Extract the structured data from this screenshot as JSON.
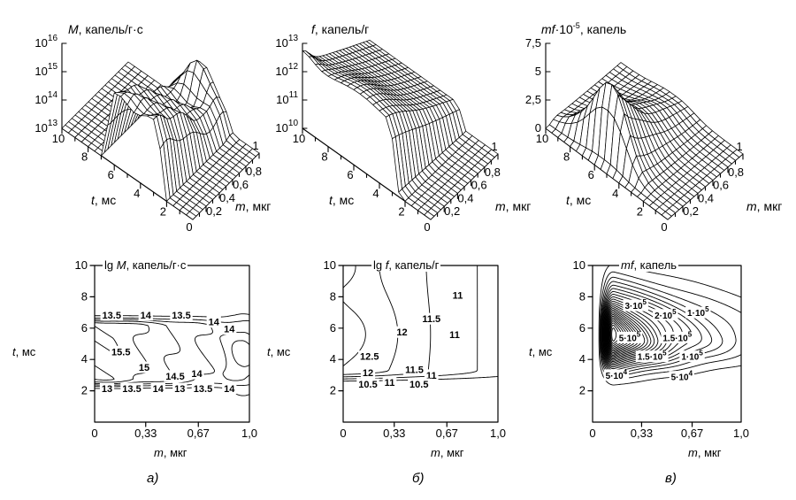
{
  "figure": {
    "colors": {
      "ink": "#000000",
      "paper": "#ffffff"
    },
    "captions": {
      "a": "а)",
      "b": "б)",
      "v": "в)"
    },
    "axis_labels": {
      "t": {
        "var": "t",
        "rest": ", мс"
      },
      "m": {
        "var": "m",
        "rest": ", мкг"
      }
    },
    "titles": {
      "surface_M": {
        "var": "M",
        "rest": ", капель/г·с"
      },
      "surface_f": {
        "var": "f",
        "rest": ", капель/г"
      },
      "surface_mf": {
        "var": "mf",
        "mid": "·10",
        "sup": "-5",
        "rest": ", капель"
      },
      "contour_M": {
        "prefix": "lg ",
        "var": "M",
        "rest": ", капель/г·с"
      },
      "contour_f": {
        "prefix": "lg ",
        "var": "f",
        "rest": ", капель/г"
      },
      "contour_mf": {
        "var": "mf",
        "rest": ", капель"
      }
    }
  },
  "chart_data": [
    {
      "id": "surface-M",
      "type": "surface",
      "panel": "top-left",
      "title": "M, капель/г·с",
      "t_axis": {
        "label": "t, мс",
        "range": [
          0,
          10
        ],
        "tick_values": [
          10,
          8,
          6,
          4,
          2
        ],
        "tick_labels": [
          "10",
          "8",
          "6",
          "4",
          "2"
        ]
      },
      "m_axis": {
        "label": "m, мкг",
        "range": [
          0,
          1
        ],
        "tick_values": [
          0,
          0.2,
          0.4,
          0.6,
          0.8,
          1
        ],
        "tick_labels": [
          "0",
          "0,2",
          "0,4",
          "0,6",
          "0,8",
          "1"
        ]
      },
      "z_axis": {
        "scale": "log10",
        "range_exp": [
          13,
          16
        ],
        "tick_values": [
          13,
          14,
          15,
          16
        ],
        "tick_exponents": [
          "13",
          "14",
          "15",
          "16"
        ],
        "tick_labels": [
          "10^13",
          "10^14",
          "10^15",
          "10^16"
        ]
      },
      "grid_n": 20,
      "surface_model": {
        "kind": "plateau_ridge",
        "base": 12.85,
        "rise": [
          2.05,
          2.75
        ],
        "fall": [
          6.15,
          6.9
        ],
        "amp0": 2.6,
        "ampSlope": 2.5,
        "ampKnee": 0.12,
        "ampMin": 0.55,
        "spike": {
          "t": 4.3,
          "divT": 3.0,
          "m": 0.96,
          "divM": 0.012,
          "amp": 1.45
        },
        "wiggle": {
          "amp": 0.13,
          "fm": 16,
          "ft": 2.5
        }
      }
    },
    {
      "id": "surface-f",
      "type": "surface",
      "panel": "top-middle",
      "title": "f, капель/г",
      "t_axis": {
        "label": "t, мс",
        "range": [
          0,
          10
        ],
        "tick_values": [
          10,
          8,
          6,
          4,
          2
        ],
        "tick_labels": [
          "10",
          "8",
          "6",
          "4",
          "2"
        ]
      },
      "m_axis": {
        "label": "m, мкг",
        "range": [
          0,
          1
        ],
        "tick_values": [
          0,
          0.2,
          0.4,
          0.6,
          0.8,
          1
        ],
        "tick_labels": [
          "0",
          "0,2",
          "0,4",
          "0,6",
          "0,8",
          "1"
        ]
      },
      "z_axis": {
        "scale": "log10",
        "range_exp": [
          10,
          13
        ],
        "tick_values": [
          10,
          11,
          12,
          13
        ],
        "tick_exponents": [
          "10",
          "11",
          "12",
          "13"
        ],
        "tick_labels": [
          "10^10",
          "10^11",
          "10^12",
          "10^13"
        ]
      },
      "grid_n": 20,
      "surface_model": {
        "kind": "cliff_slope",
        "base": 9.9,
        "rise": [
          2.3,
          3.3
        ],
        "amp0": 2.4,
        "ampSlope": 1.5,
        "ampMin": 0.85,
        "hump": {
          "t": 5.6,
          "divT": 7.0,
          "m": 0.12,
          "divM": 0.09,
          "amp": 0.42
        },
        "corner": {
          "divT": 1.4,
          "divM": 0.018,
          "amp": 0.42
        }
      }
    },
    {
      "id": "surface-mf",
      "type": "surface",
      "panel": "top-right",
      "title": "mf·10^-5, капель",
      "t_axis": {
        "label": "t, мс",
        "range": [
          0,
          10
        ],
        "tick_values": [
          10,
          8,
          6,
          4,
          2
        ],
        "tick_labels": [
          "10",
          "8",
          "6",
          "4",
          "2"
        ]
      },
      "m_axis": {
        "label": "m, мкг",
        "range": [
          0,
          1
        ],
        "tick_values": [
          0,
          0.2,
          0.4,
          0.6,
          0.8,
          1
        ],
        "tick_labels": [
          "0",
          "0,2",
          "0,4",
          "0,6",
          "0,8",
          "1"
        ]
      },
      "z_axis": {
        "scale": "linear",
        "range": [
          0,
          7.5
        ],
        "tick_values": [
          0,
          2.5,
          5,
          7.5
        ],
        "tick_labels": [
          "0",
          "2,5",
          "5",
          "7,5"
        ]
      },
      "grid_n": 20,
      "surface_model": {
        "kind": "peak",
        "peak": 6.7,
        "t0": 5.3,
        "divLow": 2.6,
        "divHigh": 7.0,
        "mRise": [
          0.03,
          0.14
        ],
        "mDecay": 2.6,
        "noiseAmp": 0.05,
        "noiseFm": 13,
        "noiseFt": 2
      }
    },
    {
      "id": "contour-lgM",
      "type": "contour",
      "panel": "bottom-left",
      "caption": "а)",
      "title": "lg M, капель/г·с",
      "model_of": "surface-M",
      "x_axis": {
        "label": "m, мкг",
        "range": [
          0,
          1
        ],
        "tick_values": [
          0,
          0.33,
          0.67,
          1
        ],
        "tick_labels": [
          "0",
          "0,33",
          "0,67",
          "1,0"
        ]
      },
      "y_axis": {
        "label": "t, мс",
        "range": [
          0,
          10
        ],
        "tick_values": [
          2,
          4,
          6,
          8,
          10
        ],
        "tick_labels": [
          "2",
          "4",
          "6",
          "8",
          "10"
        ]
      },
      "levels": [
        13,
        13.5,
        14,
        14.5,
        15,
        15.5
      ],
      "labels": [
        {
          "text": "13.5",
          "m": 0.11,
          "t": 6.85
        },
        {
          "text": "14",
          "m": 0.33,
          "t": 6.85
        },
        {
          "text": "13.5",
          "m": 0.56,
          "t": 6.85
        },
        {
          "text": "14",
          "m": 0.77,
          "t": 6.4
        },
        {
          "text": "14",
          "m": 0.87,
          "t": 5.95
        },
        {
          "text": "15.5",
          "m": 0.17,
          "t": 4.5
        },
        {
          "text": "15",
          "m": 0.32,
          "t": 3.5
        },
        {
          "text": "14.5",
          "m": 0.52,
          "t": 2.95
        },
        {
          "text": "14",
          "m": 0.66,
          "t": 3.1
        },
        {
          "text": "13",
          "m": 0.08,
          "t": 2.15
        },
        {
          "text": "13.5",
          "m": 0.24,
          "t": 2.15
        },
        {
          "text": "14",
          "m": 0.41,
          "t": 2.15
        },
        {
          "text": "13",
          "m": 0.55,
          "t": 2.15
        },
        {
          "text": "13.5",
          "m": 0.7,
          "t": 2.15
        },
        {
          "text": "14",
          "m": 0.87,
          "t": 2.15
        }
      ]
    },
    {
      "id": "contour-lgf",
      "type": "contour",
      "panel": "bottom-middle",
      "caption": "б)",
      "title": "lg f, капель/г",
      "model_of": "surface-f",
      "x_axis": {
        "label": "m, мкг",
        "range": [
          0,
          1
        ],
        "tick_values": [
          0,
          0.33,
          0.67,
          1
        ],
        "tick_labels": [
          "0",
          "0,33",
          "0,67",
          "1,0"
        ]
      },
      "y_axis": {
        "label": "t, мс",
        "range": [
          0,
          10
        ],
        "tick_values": [
          2,
          4,
          6,
          8,
          10
        ],
        "tick_labels": [
          "2",
          "4",
          "6",
          "8",
          "10"
        ]
      },
      "levels": [
        10.5,
        11,
        11.5,
        12,
        12.5
      ],
      "labels": [
        {
          "text": "11",
          "m": 0.74,
          "t": 8.1
        },
        {
          "text": "11.5",
          "m": 0.57,
          "t": 6.6
        },
        {
          "text": "12",
          "m": 0.38,
          "t": 5.75
        },
        {
          "text": "11",
          "m": 0.72,
          "t": 5.6
        },
        {
          "text": "12.5",
          "m": 0.17,
          "t": 4.2
        },
        {
          "text": "12",
          "m": 0.16,
          "t": 3.15
        },
        {
          "text": "11.5",
          "m": 0.46,
          "t": 3.35
        },
        {
          "text": "11",
          "m": 0.57,
          "t": 3.0
        },
        {
          "text": "10.5",
          "m": 0.16,
          "t": 2.43
        },
        {
          "text": "11",
          "m": 0.3,
          "t": 2.55
        },
        {
          "text": "10.5",
          "m": 0.49,
          "t": 2.43
        }
      ]
    },
    {
      "id": "contour-mf",
      "type": "contour",
      "panel": "bottom-right",
      "caption": "в)",
      "title": "mf, капель",
      "model_of": "surface-mf",
      "x_axis": {
        "label": "m, мкг",
        "range": [
          0,
          1
        ],
        "tick_values": [
          0,
          0.33,
          0.67,
          1
        ],
        "tick_labels": [
          "0",
          "0,33",
          "0,67",
          "1,0"
        ]
      },
      "y_axis": {
        "label": "t, мс",
        "range": [
          0,
          10
        ],
        "tick_values": [
          2,
          4,
          6,
          8,
          10
        ],
        "tick_labels": [
          "2",
          "4",
          "6",
          "8",
          "10"
        ]
      },
      "levels": [
        0.25,
        0.5,
        0.75,
        1,
        1.25,
        1.5,
        1.75,
        2,
        2.25,
        2.5,
        2.75,
        3,
        3.25,
        3.5,
        3.75,
        4,
        4.25,
        4.5,
        4.75,
        5,
        5.25,
        5.5,
        5.75,
        6,
        6.25,
        6.5
      ],
      "labels": [
        {
          "text": "3·10",
          "sup": "5",
          "m": 0.29,
          "t": 7.45
        },
        {
          "text": "2·10",
          "sup": "5",
          "m": 0.49,
          "t": 6.85
        },
        {
          "text": "1·10",
          "sup": "5",
          "m": 0.71,
          "t": 7.0
        },
        {
          "text": "5·10",
          "sup": "5",
          "m": 0.25,
          "t": 5.4
        },
        {
          "text": "1.5·10",
          "sup": "5",
          "m": 0.57,
          "t": 5.4
        },
        {
          "text": "1.5·10",
          "sup": "5",
          "m": 0.4,
          "t": 4.2
        },
        {
          "text": "1·10",
          "sup": "5",
          "m": 0.67,
          "t": 4.2
        },
        {
          "text": "5·10",
          "sup": "4",
          "m": 0.16,
          "t": 3.0
        },
        {
          "text": "5·10",
          "sup": "4",
          "m": 0.6,
          "t": 2.9
        }
      ]
    }
  ]
}
